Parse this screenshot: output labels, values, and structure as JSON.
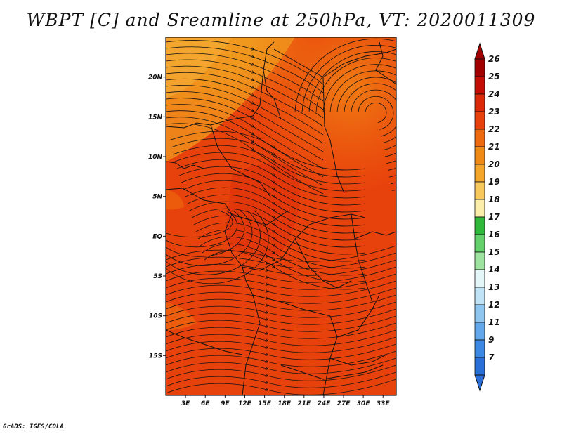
{
  "title": "WBPT [C] and Sreamline at 250hPa, VT: 2020011309",
  "credit": "GrADS: IGES/COLA",
  "map": {
    "lat_labels": [
      "20N",
      "15N",
      "10N",
      "5N",
      "EQ",
      "5S",
      "10S",
      "15S"
    ],
    "lat_values": [
      20,
      15,
      10,
      5,
      0,
      -5,
      -10,
      -15
    ],
    "lon_labels": [
      "3E",
      "6E",
      "9E",
      "12E",
      "15E",
      "18E",
      "21E",
      "24E",
      "27E",
      "30E",
      "33E"
    ],
    "lon_values": [
      3,
      6,
      9,
      12,
      15,
      18,
      21,
      24,
      27,
      30,
      33
    ],
    "lon_range": [
      0,
      35
    ],
    "lat_range": [
      -20,
      25
    ]
  },
  "colorbar": {
    "labels": [
      "26",
      "25",
      "24",
      "23",
      "22",
      "21",
      "20",
      "19",
      "18",
      "17",
      "16",
      "15",
      "14",
      "13",
      "12",
      "11",
      "9",
      "7"
    ],
    "colors": [
      "#a00000",
      "#c40d05",
      "#dc2a08",
      "#e8420c",
      "#ee6a0e",
      "#f08a16",
      "#f3a62a",
      "#f7c85c",
      "#fbeeaa",
      "#2fb83a",
      "#64d06c",
      "#9ee3a0",
      "#e4f6f8",
      "#c0e3f6",
      "#8ec6f0",
      "#62a8ea",
      "#3c88e2",
      "#2a6ed8"
    ]
  }
}
